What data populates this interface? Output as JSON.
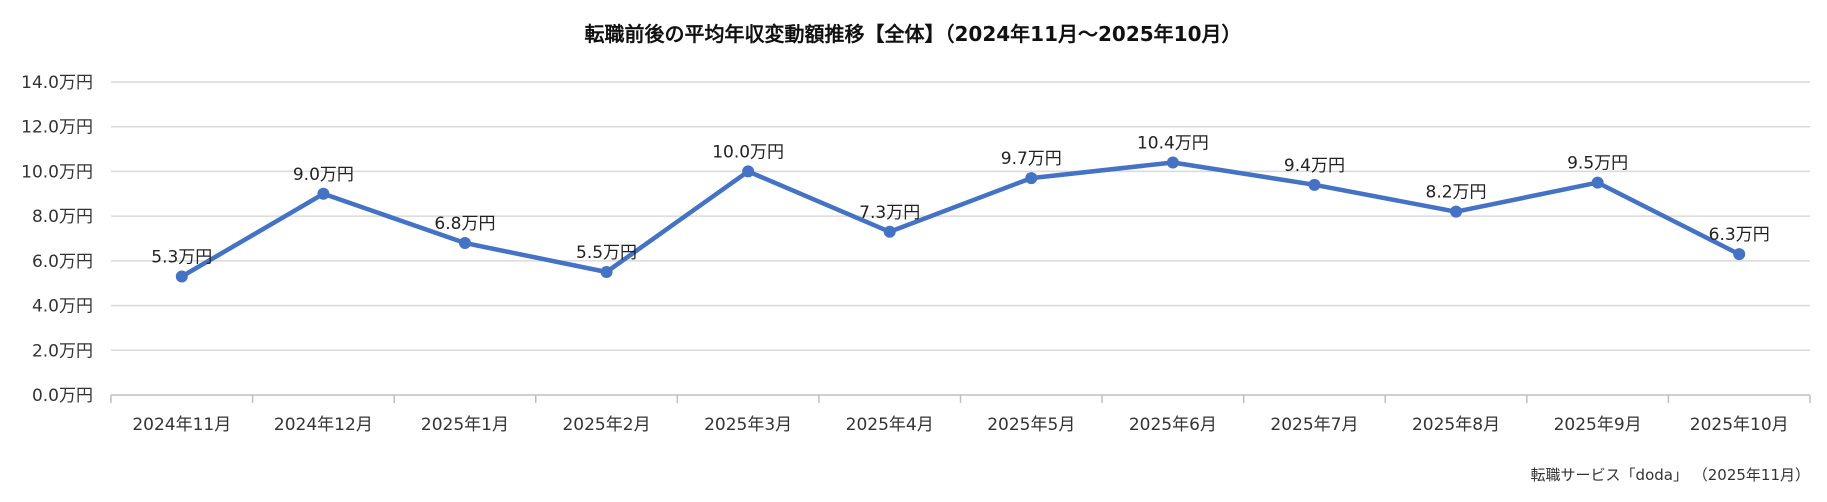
{
  "chart_data": {
    "type": "line",
    "title": "転職前後の平均年収変動額推移【全体】（2024年11月～2025年10月）",
    "categories": [
      "2024年11月",
      "2024年12月",
      "2025年1月",
      "2025年2月",
      "2025年3月",
      "2025年4月",
      "2025年5月",
      "2025年6月",
      "2025年7月",
      "2025年8月",
      "2025年9月",
      "2025年10月"
    ],
    "series": [
      {
        "values": [
          5.3,
          9.0,
          6.8,
          5.5,
          10.0,
          7.3,
          9.7,
          10.4,
          9.4,
          8.2,
          9.5,
          6.3
        ]
      }
    ],
    "data_labels": [
      "5.3万円",
      "9.0万円",
      "6.8万円",
      "5.5万円",
      "10.0万円",
      "7.3万円",
      "9.7万円",
      "10.4万円",
      "9.4万円",
      "8.2万円",
      "9.5万円",
      "6.3万円"
    ],
    "yticks": [
      0,
      2,
      4,
      6,
      8,
      10,
      12,
      14
    ],
    "ytick_labels": [
      "0.0万円",
      "2.0万円",
      "4.0万円",
      "6.0万円",
      "8.0万円",
      "10.0万円",
      "12.0万円",
      "14.0万円"
    ],
    "ylim": [
      0,
      14
    ],
    "xlabel": "",
    "ylabel": "",
    "grid": true,
    "legend": "none",
    "color": "#4472c4",
    "source": "転職サービス「doda」 （2025年11月）"
  }
}
